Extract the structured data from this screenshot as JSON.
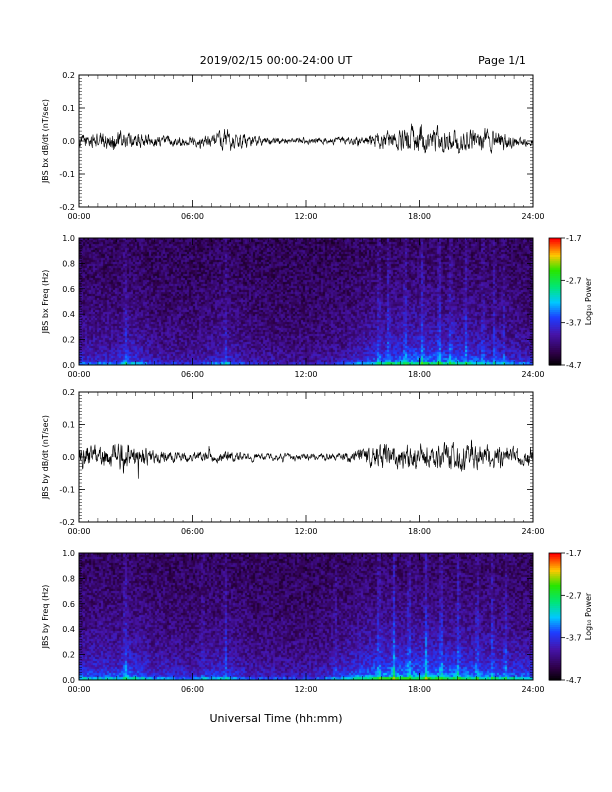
{
  "header": {
    "title": "2019/02/15  00:00-24:00 UT",
    "page": "Page 1/1"
  },
  "xaxis": {
    "label": "Universal Time (hh:mm)",
    "ticks": [
      "00:00",
      "06:00",
      "12:00",
      "18:00",
      "24:00"
    ]
  },
  "chart_data": [
    {
      "type": "line",
      "ylabel": "JBS bx dB/dt (nT/sec)",
      "xlim": [
        0,
        24
      ],
      "ylim": [
        -0.2,
        0.2
      ],
      "yticks": [
        "0.2",
        "0.1",
        "0.0",
        "-0.1",
        "-0.2"
      ],
      "envelope": {
        "hours": [
          0,
          1,
          2,
          3,
          4,
          5,
          6,
          7,
          7.7,
          8.5,
          9,
          10,
          11,
          12,
          13,
          14,
          15,
          16,
          17,
          17.5,
          18,
          18.5,
          19,
          20,
          21,
          22,
          23,
          24
        ],
        "amplitude": [
          0.018,
          0.02,
          0.024,
          0.018,
          0.015,
          0.012,
          0.012,
          0.015,
          0.028,
          0.018,
          0.013,
          0.01,
          0.009,
          0.008,
          0.008,
          0.01,
          0.014,
          0.02,
          0.028,
          0.035,
          0.04,
          0.032,
          0.03,
          0.028,
          0.03,
          0.026,
          0.016,
          0.013
        ]
      },
      "peaks": {
        "max": 0.06,
        "min": -0.06
      }
    },
    {
      "type": "heatmap",
      "ylabel": "JBS bx Freq (Hz)",
      "xlim": [
        0,
        24
      ],
      "ylim": [
        0.0,
        1.0
      ],
      "yticks": [
        "1.0",
        "0.8",
        "0.6",
        "0.4",
        "0.2",
        "0.0"
      ],
      "colorbar": {
        "label": "Log₁₀ Power",
        "ticks": [
          "-1.7",
          "-2.7",
          "-3.7",
          "-4.7"
        ],
        "range": [
          -4.7,
          -1.7
        ]
      },
      "activity": {
        "hours": [
          0,
          2,
          2.5,
          4,
          6,
          7.7,
          9,
          12,
          14,
          15,
          16.5,
          18,
          20,
          22,
          24
        ],
        "level": [
          0.45,
          0.45,
          0.6,
          0.35,
          0.3,
          0.5,
          0.3,
          0.25,
          0.35,
          0.55,
          0.7,
          0.75,
          0.7,
          0.55,
          0.4
        ]
      },
      "streak_hours": [
        2.4,
        7.7,
        15.8,
        16.3,
        17.2,
        18.1,
        19.0,
        19.6,
        20.4,
        21.3,
        21.9,
        22.4
      ]
    },
    {
      "type": "line",
      "ylabel": "JBS by dB/dt (nT/sec)",
      "xlim": [
        0,
        24
      ],
      "ylim": [
        -0.2,
        0.2
      ],
      "yticks": [
        "0.2",
        "0.1",
        "0.0",
        "-0.1",
        "-0.2"
      ],
      "envelope": {
        "hours": [
          0,
          1,
          2,
          2.5,
          3,
          4,
          5,
          6,
          7,
          8,
          9,
          10,
          11,
          12,
          13,
          14,
          15,
          16,
          17,
          18,
          19,
          20,
          21,
          22,
          23,
          24
        ],
        "amplitude": [
          0.028,
          0.03,
          0.032,
          0.045,
          0.03,
          0.018,
          0.014,
          0.012,
          0.014,
          0.016,
          0.01,
          0.008,
          0.008,
          0.008,
          0.009,
          0.01,
          0.02,
          0.03,
          0.032,
          0.034,
          0.032,
          0.033,
          0.03,
          0.028,
          0.024,
          0.022
        ]
      },
      "peaks": {
        "max": 0.07,
        "min": -0.08
      }
    },
    {
      "type": "heatmap",
      "ylabel": "JBS by Freq (Hz)",
      "xlim": [
        0,
        24
      ],
      "ylim": [
        0.0,
        1.0
      ],
      "yticks": [
        "1.0",
        "0.8",
        "0.6",
        "0.4",
        "0.2",
        "0.0"
      ],
      "colorbar": {
        "label": "Log₁₀ Power",
        "ticks": [
          "-1.7",
          "-2.7",
          "-3.7",
          "-4.7"
        ],
        "range": [
          -4.7,
          -1.7
        ]
      },
      "activity": {
        "hours": [
          0,
          2,
          2.5,
          4,
          6,
          7.7,
          9,
          12,
          13.5,
          15,
          16.5,
          18,
          20,
          22,
          24
        ],
        "level": [
          0.6,
          0.6,
          0.75,
          0.5,
          0.45,
          0.6,
          0.4,
          0.35,
          0.5,
          0.75,
          0.85,
          0.85,
          0.8,
          0.7,
          0.6
        ]
      },
      "streak_hours": [
        2.4,
        6.5,
        7.7,
        13.5,
        15.8,
        16.6,
        17.4,
        18.3,
        19.1,
        20.0,
        21.0,
        21.8,
        22.5
      ]
    }
  ]
}
